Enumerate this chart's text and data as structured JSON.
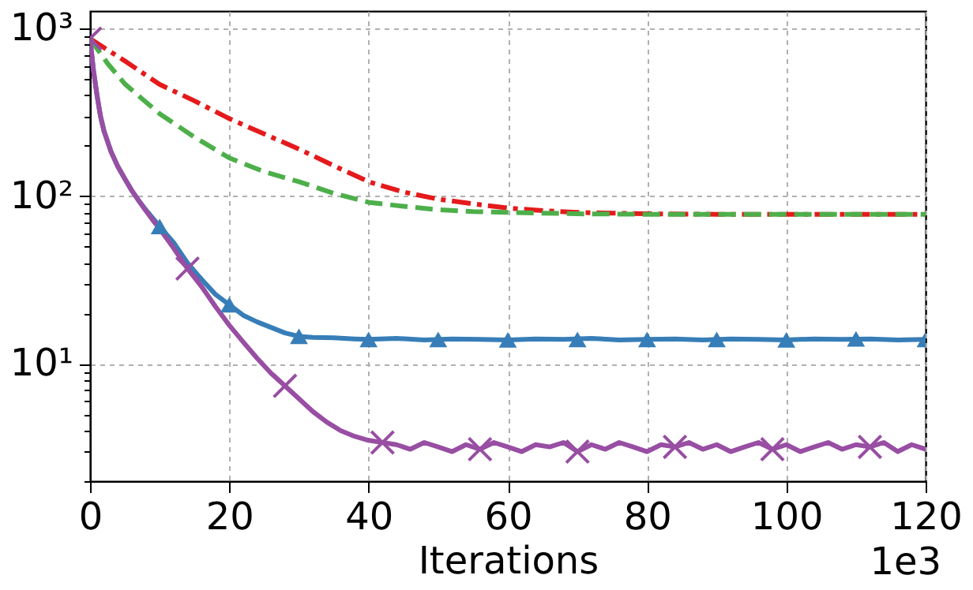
{
  "chart_data": {
    "type": "line",
    "xlabel": "Iterations",
    "annotations": [
      "1e3"
    ],
    "log": "y",
    "grid": true,
    "xlim": [
      0,
      120
    ],
    "xticks": [
      0,
      20,
      40,
      60,
      80,
      100,
      120
    ],
    "ylim": [
      2,
      1270
    ],
    "yticks": [
      {
        "value": 2,
        "label": null
      },
      {
        "value": 3,
        "label": null
      },
      {
        "value": 4,
        "label": null
      },
      {
        "value": 5,
        "label": null
      },
      {
        "value": 6,
        "label": null
      },
      {
        "value": 7,
        "label": null
      },
      {
        "value": 8,
        "label": null
      },
      {
        "value": 9,
        "label": null
      },
      {
        "value": 10,
        "label": "10¹"
      },
      {
        "value": 20,
        "label": null
      },
      {
        "value": 30,
        "label": null
      },
      {
        "value": 40,
        "label": null
      },
      {
        "value": 50,
        "label": null
      },
      {
        "value": 60,
        "label": null
      },
      {
        "value": 70,
        "label": null
      },
      {
        "value": 80,
        "label": null
      },
      {
        "value": 90,
        "label": null
      },
      {
        "value": 100,
        "label": "10²"
      },
      {
        "value": 200,
        "label": null
      },
      {
        "value": 300,
        "label": null
      },
      {
        "value": 400,
        "label": null
      },
      {
        "value": 500,
        "label": null
      },
      {
        "value": 600,
        "label": null
      },
      {
        "value": 700,
        "label": null
      },
      {
        "value": 800,
        "label": null
      },
      {
        "value": 900,
        "label": null
      },
      {
        "value": 1000,
        "label": "10³"
      }
    ],
    "series": [
      {
        "type": "line",
        "color": "#e41a1c",
        "line_style": "dashdot",
        "x": [
          0,
          5,
          10,
          15,
          20,
          25,
          30,
          35,
          40,
          45,
          50,
          55,
          60,
          65,
          70,
          80,
          90,
          100,
          110,
          120
        ],
        "values": [
          870,
          640,
          464,
          370,
          290,
          235,
          191,
          152,
          122,
          106,
          96,
          90,
          85,
          82,
          80,
          78.5,
          78,
          78,
          78,
          78
        ]
      },
      {
        "type": "line",
        "color": "#4daf4a",
        "line_style": "dashed",
        "x": [
          0,
          2.5,
          5,
          7.5,
          10,
          15,
          20,
          25,
          30,
          35,
          40,
          45,
          50,
          55,
          60,
          70,
          80,
          90,
          100,
          110,
          120
        ],
        "values": [
          870,
          620,
          467,
          380,
          310,
          225,
          169,
          140,
          122,
          104,
          92,
          87,
          83,
          81,
          80,
          78.5,
          78,
          78,
          78,
          78,
          78
        ]
      },
      {
        "type": "line",
        "color": "#377eb8",
        "line_style": "solid",
        "x": [
          0,
          0.5,
          1,
          1.5,
          2,
          3,
          4,
          5,
          6,
          7,
          8,
          9,
          10,
          12,
          14,
          16,
          18,
          20,
          22,
          24,
          26,
          28,
          30,
          32,
          35,
          38,
          40,
          44,
          48,
          52,
          56,
          60,
          64,
          68,
          72,
          76,
          80,
          84,
          88,
          92,
          96,
          100,
          104,
          108,
          112,
          116,
          120
        ],
        "values": [
          870,
          560,
          400,
          300,
          245,
          185,
          150,
          127,
          108,
          94,
          83,
          74,
          66,
          53,
          40,
          32,
          26,
          22.5,
          19.5,
          17.8,
          16.5,
          15.3,
          14.6,
          14.4,
          14.3,
          14.1,
          14.0,
          14.2,
          13.9,
          14.1,
          14.0,
          13.9,
          14.1,
          14.0,
          14.2,
          13.9,
          14.0,
          14.1,
          13.9,
          14.1,
          14.0,
          13.9,
          14.1,
          14.0,
          14.1,
          13.9,
          14.0
        ]
      },
      {
        "type": "line",
        "color": "#984ea3",
        "line_style": "solid",
        "x": [
          0,
          0.5,
          1,
          1.5,
          2,
          3,
          4,
          5,
          6,
          7,
          8,
          9,
          10,
          12,
          14,
          16,
          18,
          20,
          22,
          24,
          26,
          28,
          30,
          32,
          34,
          36,
          38,
          40,
          42,
          44,
          46,
          48,
          50,
          52,
          54,
          56,
          58,
          60,
          62,
          64,
          66,
          68,
          70,
          72,
          74,
          76,
          78,
          80,
          82,
          84,
          86,
          88,
          90,
          92,
          94,
          96,
          98,
          100,
          102,
          104,
          106,
          108,
          110,
          112,
          114,
          116,
          118,
          120
        ],
        "values": [
          870,
          560,
          400,
          300,
          245,
          185,
          150,
          127,
          108,
          94,
          82,
          72,
          64,
          49,
          37,
          29,
          22,
          17,
          13.5,
          10.8,
          8.8,
          7.4,
          6.2,
          5.2,
          4.5,
          4.0,
          3.7,
          3.5,
          3.4,
          3.3,
          3.1,
          3.4,
          3.2,
          3.0,
          3.3,
          3.1,
          3.4,
          3.2,
          3.0,
          3.3,
          3.2,
          3.4,
          3.0,
          3.3,
          3.1,
          3.4,
          3.2,
          3.0,
          3.3,
          3.2,
          3.4,
          3.1,
          3.3,
          3.0,
          3.2,
          3.4,
          3.1,
          3.3,
          3.0,
          3.2,
          3.4,
          3.1,
          3.3,
          3.2,
          3.4,
          3.0,
          3.3,
          3.1
        ]
      },
      {
        "type": "scatter",
        "color": "#377eb8",
        "marker": "triangle",
        "x": [
          10,
          20,
          30,
          40,
          50,
          60,
          70,
          80,
          90,
          100,
          110,
          120
        ],
        "values": [
          66,
          22.5,
          14.6,
          14.0,
          14.0,
          13.9,
          14.0,
          14.0,
          14.0,
          13.9,
          14.1,
          14.0
        ]
      },
      {
        "type": "scatter",
        "color": "#984ea3",
        "marker": "cross",
        "x": [
          0,
          14,
          28,
          42,
          56,
          70,
          84,
          98,
          112
        ],
        "values": [
          870,
          37,
          7.4,
          3.4,
          3.1,
          3.0,
          3.2,
          3.1,
          3.2
        ]
      }
    ]
  }
}
